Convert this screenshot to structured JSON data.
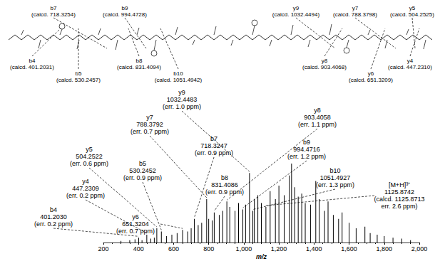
{
  "chart_data": {
    "type": "bar",
    "xlabel": "m/z",
    "xlim": [
      200,
      2000
    ],
    "xticks": [
      200,
      400,
      600,
      800,
      1000,
      1200,
      1400,
      1600,
      1800,
      2000
    ],
    "ylim": [
      0,
      100
    ],
    "tick_labels": "x",
    "color": "#000000",
    "x": [
      300,
      350,
      380,
      401.203,
      420,
      447.2309,
      470,
      490,
      504.2522,
      530.2452,
      560,
      590,
      620,
      651.3204,
      680,
      700,
      718.3247,
      740,
      760,
      788.3792,
      800,
      820,
      831.4086,
      860,
      880,
      903.4058,
      920,
      950,
      970,
      994.4716,
      1010,
      1032.4483,
      1051.4927,
      1060,
      1080,
      1100,
      1125.8742,
      1150,
      1180,
      1200,
      1230,
      1260,
      1272,
      1290,
      1310,
      1330,
      1350,
      1380,
      1410,
      1430,
      1460,
      1480,
      1510,
      1540,
      1560,
      1600,
      1640,
      1690,
      1720,
      1760,
      1800,
      1850,
      1900,
      1950
    ],
    "values": [
      2,
      3,
      4,
      6,
      3,
      10,
      5,
      6,
      18,
      14,
      8,
      10,
      12,
      16,
      14,
      18,
      30,
      22,
      25,
      55,
      30,
      28,
      38,
      35,
      40,
      52,
      45,
      40,
      50,
      42,
      48,
      88,
      40,
      55,
      60,
      50,
      45,
      65,
      55,
      72,
      60,
      85,
      100,
      70,
      58,
      62,
      50,
      48,
      78,
      55,
      40,
      52,
      35,
      30,
      38,
      25,
      18,
      20,
      12,
      10,
      8,
      6,
      5,
      3
    ],
    "annotations": [
      {
        "x": 401.203,
        "lines": [
          "b4",
          "401.2030",
          "(err. 0.2 ppm)"
        ]
      },
      {
        "x": 447.2309,
        "lines": [
          "y4",
          "447.2309",
          "(err. 0.2 ppm)"
        ]
      },
      {
        "x": 504.2522,
        "lines": [
          "y5",
          "504.2522",
          "(err. 0.6 ppm)"
        ]
      },
      {
        "x": 530.2452,
        "lines": [
          "b5",
          "530.2452",
          "(err. 0.9 ppm)"
        ]
      },
      {
        "x": 651.3204,
        "lines": [
          "y6",
          "651.3204",
          "(err. 0.7 ppm)"
        ]
      },
      {
        "x": 718.3247,
        "lines": [
          "b7",
          "718.3247",
          "(err. 0.9 ppm)"
        ]
      },
      {
        "x": 788.3792,
        "lines": [
          "y7",
          "788.3792",
          "(err. 0.7 ppm)"
        ]
      },
      {
        "x": 831.4086,
        "lines": [
          "b8",
          "831.4086",
          "(err. 0.9 ppm)"
        ]
      },
      {
        "x": 903.4058,
        "lines": [
          "y8",
          "903.4058",
          "(err. 1.1 ppm)"
        ]
      },
      {
        "x": 994.4716,
        "lines": [
          "b9",
          "994.4716",
          "(err. 1.2 ppm)"
        ]
      },
      {
        "x": 1032.4483,
        "lines": [
          "y9",
          "1032.4483",
          "(err. 1.0 ppm)"
        ]
      },
      {
        "x": 1051.4927,
        "lines": [
          "b10",
          "1051.4927",
          "(err. 1.3 ppm)"
        ]
      },
      {
        "x": 1125.8742,
        "lines": [
          "[M+H]³⁺",
          "1125.8742",
          "(calcd. 1125.8713",
          "err. 2.6 ppm)"
        ]
      }
    ]
  },
  "structure": {
    "fragments": [
      {
        "lines": [
          "b7",
          "(calcd. 718.3254)"
        ]
      },
      {
        "lines": [
          "b9",
          "(calcd. 994.4728)"
        ]
      },
      {
        "lines": [
          "y9",
          "(calcd. 1032.4494)"
        ]
      },
      {
        "lines": [
          "y7",
          "(calcd. 788.3798)"
        ]
      },
      {
        "lines": [
          "y5",
          "(calcd. 504.2525)"
        ]
      },
      {
        "lines": [
          "b4",
          "(calcd. 401.2031)"
        ]
      },
      {
        "lines": [
          "b5",
          "(calcd. 530.2457)"
        ]
      },
      {
        "lines": [
          "b8",
          "(calcd. 831.4094)"
        ]
      },
      {
        "lines": [
          "b10",
          "(calcd. 1051.4942)"
        ]
      },
      {
        "lines": [
          "y8",
          "(calcd. 903.4068)"
        ]
      },
      {
        "lines": [
          "y6",
          "(calcd. 651.3209)"
        ]
      },
      {
        "lines": [
          "y4",
          "(calcd. 447.2310)"
        ]
      }
    ]
  }
}
